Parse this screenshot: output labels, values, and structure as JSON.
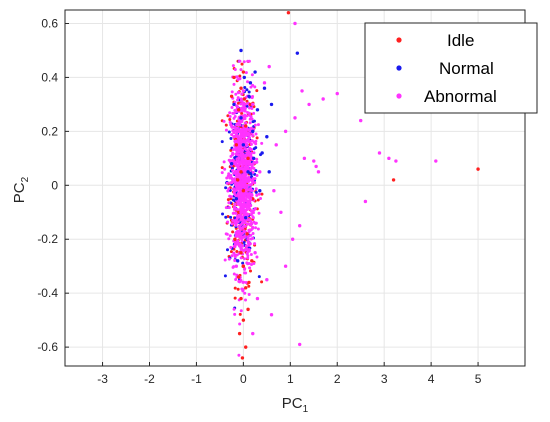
{
  "chart_data": {
    "type": "scatter",
    "xlabel": "PC",
    "xlabel_sub": "1",
    "ylabel": "PC",
    "ylabel_sub": "2",
    "xlim": [
      -3.8,
      6.0
    ],
    "ylim": [
      -0.67,
      0.65
    ],
    "xticks": [
      -3,
      -2,
      -1,
      0,
      1,
      2,
      3,
      4,
      5
    ],
    "yticks": [
      -0.6,
      -0.4,
      -0.2,
      0,
      0.2,
      0.4,
      0.6
    ],
    "xtick_labels": [
      "-3",
      "-2",
      "-1",
      "0",
      "1",
      "2",
      "3",
      "4",
      "5"
    ],
    "ytick_labels": [
      "-0.6",
      "-0.4",
      "-0.2",
      "0",
      "0.2",
      "0.4",
      "0.6"
    ],
    "grid": true,
    "legend_position": "top-right",
    "series": [
      {
        "name": "Idle",
        "color": "#ff2020",
        "points": [
          [
            0.96,
            0.64
          ],
          [
            5.0,
            0.06
          ],
          [
            3.2,
            0.02
          ],
          [
            -0.05,
            0.36
          ],
          [
            0.02,
            0.32
          ],
          [
            -0.1,
            0.28
          ],
          [
            0.05,
            0.22
          ],
          [
            -0.15,
            0.15
          ],
          [
            0.1,
            0.1
          ],
          [
            -0.05,
            0.05
          ],
          [
            0.0,
            -0.02
          ],
          [
            -0.1,
            -0.1
          ],
          [
            0.08,
            -0.18
          ],
          [
            -0.05,
            -0.25
          ],
          [
            0.0,
            -0.3
          ],
          [
            -0.1,
            -0.34
          ],
          [
            0.05,
            -0.38
          ],
          [
            -0.05,
            -0.42
          ],
          [
            0.1,
            -0.46
          ],
          [
            0.0,
            -0.5
          ],
          [
            -0.08,
            -0.55
          ],
          [
            0.05,
            -0.6
          ],
          [
            -0.02,
            -0.64
          ],
          [
            0.12,
            -0.36
          ],
          [
            -0.18,
            -0.2
          ],
          [
            0.15,
            0.3
          ],
          [
            -0.2,
            0.4
          ],
          [
            0.0,
            0.42
          ],
          [
            0.2,
            -0.05
          ],
          [
            -0.12,
            0.02
          ],
          [
            0.18,
            -0.28
          ],
          [
            -0.25,
            0.33
          ]
        ]
      },
      {
        "name": "Normal",
        "color": "#1a1aee",
        "points": [
          [
            1.15,
            0.49
          ],
          [
            0.25,
            0.42
          ],
          [
            -0.05,
            0.5
          ],
          [
            0.3,
            0.28
          ],
          [
            0.6,
            0.3
          ],
          [
            0.5,
            0.18
          ],
          [
            0.2,
            0.2
          ],
          [
            -0.1,
            0.1
          ],
          [
            0.1,
            0.05
          ],
          [
            -0.15,
            -0.05
          ],
          [
            0.05,
            -0.12
          ],
          [
            0.4,
            0.12
          ],
          [
            -0.2,
            0.3
          ],
          [
            0.15,
            0.38
          ],
          [
            -0.05,
            0.25
          ],
          [
            0.35,
            -0.02
          ],
          [
            0.0,
            0.15
          ],
          [
            -0.25,
            0.08
          ],
          [
            0.12,
            0.33
          ],
          [
            0.45,
            0.36
          ],
          [
            0.08,
            -0.2
          ],
          [
            -0.12,
            -0.28
          ],
          [
            0.22,
            0.1
          ],
          [
            0.55,
            0.05
          ],
          [
            0.02,
            0.4
          ]
        ]
      },
      {
        "name": "Abnormal",
        "color": "#ff33ff",
        "points": [
          [
            1.1,
            0.6
          ],
          [
            2.5,
            0.24
          ],
          [
            2.9,
            0.12
          ],
          [
            3.1,
            0.1
          ],
          [
            3.25,
            0.09
          ],
          [
            4.1,
            0.09
          ],
          [
            2.6,
            -0.06
          ],
          [
            1.7,
            0.32
          ],
          [
            2.0,
            0.34
          ],
          [
            1.4,
            0.3
          ],
          [
            1.25,
            0.35
          ],
          [
            1.1,
            0.25
          ],
          [
            1.3,
            0.1
          ],
          [
            1.5,
            0.09
          ],
          [
            1.55,
            0.07
          ],
          [
            1.6,
            0.05
          ],
          [
            1.2,
            -0.15
          ],
          [
            1.05,
            -0.2
          ],
          [
            0.9,
            -0.3
          ],
          [
            1.2,
            -0.59
          ],
          [
            0.6,
            -0.48
          ],
          [
            0.5,
            -0.35
          ],
          [
            0.8,
            -0.1
          ],
          [
            0.7,
            0.15
          ],
          [
            0.9,
            0.2
          ],
          [
            0.55,
            0.44
          ],
          [
            0.45,
            0.38
          ],
          [
            0.3,
            -0.42
          ],
          [
            0.2,
            -0.55
          ],
          [
            0.1,
            -0.2
          ],
          [
            0.0,
            0.0
          ],
          [
            -0.1,
            0.1
          ],
          [
            0.05,
            0.2
          ],
          [
            -0.05,
            -0.1
          ],
          [
            0.15,
            -0.05
          ],
          [
            -0.2,
            0.18
          ],
          [
            0.2,
            0.3
          ],
          [
            0.0,
            0.35
          ],
          [
            -0.15,
            -0.3
          ],
          [
            0.25,
            -0.25
          ],
          [
            0.35,
            0.05
          ],
          [
            0.65,
            -0.02
          ]
        ]
      }
    ]
  }
}
